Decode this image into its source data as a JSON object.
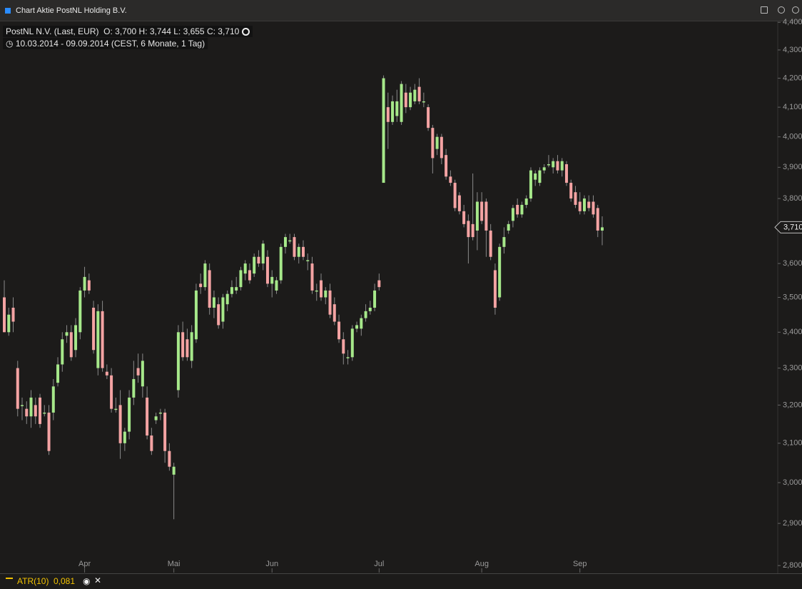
{
  "window_title": "Chart Aktie PostNL Holding B.V.",
  "atr": {
    "label": "ATR(10)",
    "value": "0,081"
  },
  "chart_data": {
    "type": "candlestick",
    "instrument": "PostNL N.V. (Last, EUR)",
    "ohlc_text": "O: 3,700  H: 3,744  L: 3,655  C: 3,710",
    "range_text": "10.03.2014 - 09.09.2014 (CEST, 6 Monate, 1 Tag)",
    "log_scale": true,
    "up_color": "#a6e88a",
    "down_color": "#f4a3a3",
    "ylim": [
      2.787,
      4.419
    ],
    "yticks": [
      {
        "value": 2.8,
        "label": "2,800"
      },
      {
        "value": 2.9,
        "label": "2,900"
      },
      {
        "value": 3.0,
        "label": "3,000"
      },
      {
        "value": 3.1,
        "label": "3,100"
      },
      {
        "value": 3.2,
        "label": "3,200"
      },
      {
        "value": 3.3,
        "label": "3,300"
      },
      {
        "value": 3.4,
        "label": "3,400"
      },
      {
        "value": 3.5,
        "label": "3,500"
      },
      {
        "value": 3.6,
        "label": "3,600"
      },
      {
        "value": 3.8,
        "label": "3,800"
      },
      {
        "value": 3.9,
        "label": "3,900"
      },
      {
        "value": 4.0,
        "label": "4,000"
      },
      {
        "value": 4.1,
        "label": "4,100"
      },
      {
        "value": 4.2,
        "label": "4,200"
      },
      {
        "value": 4.3,
        "label": "4,300"
      },
      {
        "value": 4.4,
        "label": "4,400"
      }
    ],
    "xticks": [
      {
        "value": 18,
        "label": "Apr"
      },
      {
        "value": 38,
        "label": "Mai"
      },
      {
        "value": 60,
        "label": "Jun"
      },
      {
        "value": 84,
        "label": "Jul"
      },
      {
        "value": 107,
        "label": "Aug"
      },
      {
        "value": 129,
        "label": "Sep"
      }
    ],
    "last": {
      "value": 3.71,
      "label": "3,710"
    },
    "open": [
      3.5,
      3.4,
      3.47,
      3.3,
      3.2,
      3.19,
      3.17,
      3.2,
      3.22,
      3.18,
      3.18,
      3.18,
      3.26,
      3.31,
      3.39,
      3.4,
      3.35,
      3.4,
      3.52,
      3.55,
      3.47,
      3.3,
      3.46,
      3.29,
      3.28,
      3.19,
      3.2,
      3.1,
      3.13,
      3.22,
      3.3,
      3.25,
      3.22,
      3.12,
      3.16,
      3.18,
      3.18,
      3.08,
      3.02,
      3.24,
      3.4,
      3.38,
      3.32,
      3.38,
      3.54,
      3.53,
      3.58,
      3.47,
      3.48,
      3.43,
      3.48,
      3.51,
      3.52,
      3.53,
      3.57,
      3.58,
      3.57,
      3.62,
      3.6,
      3.62,
      3.54,
      3.52,
      3.55,
      3.65,
      3.67,
      3.68,
      3.62,
      3.65,
      3.61,
      3.6,
      3.52,
      3.55,
      3.5,
      3.52,
      3.48,
      3.43,
      3.38,
      3.33,
      3.33,
      3.41,
      3.41,
      3.44,
      3.46,
      3.47,
      3.55,
      3.85,
      4.1,
      4.05,
      4.07,
      4.05,
      4.15,
      4.1,
      4.12,
      4.17,
      4.12,
      4.1,
      4.03,
      3.96,
      4.0,
      3.94,
      3.87,
      3.85,
      3.81,
      3.76,
      3.73,
      3.72,
      3.7,
      3.79,
      3.79,
      3.7,
      3.58,
      3.5,
      3.65,
      3.7,
      3.73,
      3.78,
      3.75,
      3.78,
      3.8,
      3.86,
      3.85,
      3.89,
      3.91,
      3.9,
      3.92,
      3.89,
      3.91,
      3.85,
      3.82,
      3.79,
      3.76,
      3.79,
      3.79,
      3.77,
      3.7
    ],
    "high": [
      3.55,
      3.47,
      3.5,
      3.32,
      3.22,
      3.21,
      3.24,
      3.22,
      3.23,
      3.2,
      3.2,
      3.27,
      3.33,
      3.4,
      3.42,
      3.42,
      3.44,
      3.53,
      3.59,
      3.57,
      3.49,
      3.48,
      3.49,
      3.31,
      3.3,
      3.22,
      3.24,
      3.14,
      3.24,
      3.32,
      3.34,
      3.34,
      3.25,
      3.14,
      3.18,
      3.19,
      3.19,
      3.1,
      3.05,
      3.42,
      3.43,
      3.41,
      3.42,
      3.54,
      3.57,
      3.61,
      3.6,
      3.52,
      3.5,
      3.51,
      3.52,
      3.55,
      3.56,
      3.59,
      3.61,
      3.6,
      3.63,
      3.64,
      3.67,
      3.64,
      3.58,
      3.56,
      3.66,
      3.69,
      3.69,
      3.69,
      3.66,
      3.67,
      3.63,
      3.62,
      3.54,
      3.57,
      3.53,
      3.54,
      3.5,
      3.45,
      3.4,
      3.35,
      3.42,
      3.43,
      3.45,
      3.48,
      3.49,
      3.54,
      3.57,
      4.21,
      4.15,
      4.14,
      4.16,
      4.19,
      4.18,
      4.17,
      4.18,
      4.2,
      4.15,
      4.11,
      4.04,
      4.01,
      4.01,
      3.96,
      3.89,
      3.86,
      3.82,
      3.78,
      3.75,
      3.88,
      3.82,
      3.82,
      3.8,
      3.72,
      3.6,
      3.66,
      3.71,
      3.73,
      3.78,
      3.8,
      3.79,
      3.81,
      3.9,
      3.89,
      3.9,
      3.91,
      3.94,
      3.93,
      3.94,
      3.93,
      3.92,
      3.86,
      3.84,
      3.82,
      3.81,
      3.81,
      3.81,
      3.78,
      3.744
    ],
    "low": [
      3.4,
      3.39,
      3.4,
      3.17,
      3.16,
      3.15,
      3.14,
      3.15,
      3.14,
      3.17,
      3.07,
      3.16,
      3.25,
      3.29,
      3.37,
      3.32,
      3.33,
      3.38,
      3.5,
      3.51,
      3.34,
      3.28,
      3.29,
      3.27,
      3.18,
      3.18,
      3.06,
      3.08,
      3.11,
      3.2,
      3.26,
      3.22,
      3.11,
      3.07,
      3.15,
      3.16,
      3.05,
      3.03,
      2.91,
      3.22,
      3.32,
      3.32,
      3.3,
      3.37,
      3.51,
      3.52,
      3.45,
      3.44,
      3.41,
      3.41,
      3.46,
      3.5,
      3.51,
      3.52,
      3.55,
      3.54,
      3.56,
      3.59,
      3.58,
      3.53,
      3.5,
      3.51,
      3.54,
      3.63,
      3.66,
      3.61,
      3.6,
      3.61,
      3.58,
      3.51,
      3.49,
      3.49,
      3.48,
      3.44,
      3.42,
      3.37,
      3.31,
      3.31,
      3.32,
      3.4,
      3.39,
      3.43,
      3.45,
      3.46,
      3.52,
      3.85,
      3.96,
      4.04,
      4.05,
      4.04,
      4.08,
      4.09,
      4.11,
      4.11,
      4.1,
      4.02,
      3.88,
      3.94,
      3.91,
      3.86,
      3.84,
      3.76,
      3.75,
      3.71,
      3.6,
      3.67,
      3.64,
      3.72,
      3.62,
      3.61,
      3.45,
      3.49,
      3.63,
      3.69,
      3.71,
      3.74,
      3.74,
      3.77,
      3.79,
      3.84,
      3.84,
      3.88,
      3.9,
      3.88,
      3.88,
      3.87,
      3.84,
      3.79,
      3.77,
      3.75,
      3.75,
      3.76,
      3.74,
      3.68,
      3.655
    ],
    "close": [
      3.4,
      3.45,
      3.43,
      3.19,
      3.2,
      3.17,
      3.22,
      3.17,
      3.15,
      3.18,
      3.08,
      3.25,
      3.31,
      3.38,
      3.4,
      3.33,
      3.42,
      3.52,
      3.56,
      3.52,
      3.35,
      3.46,
      3.3,
      3.28,
      3.19,
      3.19,
      3.1,
      3.13,
      3.22,
      3.27,
      3.28,
      3.32,
      3.12,
      3.08,
      3.17,
      3.18,
      3.08,
      3.04,
      3.04,
      3.4,
      3.33,
      3.33,
      3.4,
      3.52,
      3.53,
      3.6,
      3.47,
      3.5,
      3.42,
      3.5,
      3.51,
      3.53,
      3.53,
      3.58,
      3.6,
      3.55,
      3.62,
      3.6,
      3.66,
      3.54,
      3.56,
      3.55,
      3.65,
      3.68,
      3.67,
      3.62,
      3.65,
      3.62,
      3.61,
      3.52,
      3.52,
      3.5,
      3.52,
      3.45,
      3.43,
      3.38,
      3.34,
      3.33,
      3.41,
      3.42,
      3.44,
      3.46,
      3.47,
      3.52,
      3.53,
      4.2,
      4.05,
      4.12,
      4.12,
      4.18,
      4.1,
      4.15,
      4.16,
      4.12,
      4.12,
      4.03,
      3.93,
      4.0,
      3.93,
      3.87,
      3.85,
      3.77,
      3.76,
      3.72,
      3.68,
      3.68,
      3.79,
      3.73,
      3.7,
      3.62,
      3.47,
      3.65,
      3.68,
      3.72,
      3.77,
      3.75,
      3.78,
      3.8,
      3.89,
      3.88,
      3.89,
      3.9,
      3.91,
      3.92,
      3.89,
      3.92,
      3.85,
      3.8,
      3.78,
      3.76,
      3.8,
      3.77,
      3.75,
      3.7,
      3.71
    ]
  }
}
